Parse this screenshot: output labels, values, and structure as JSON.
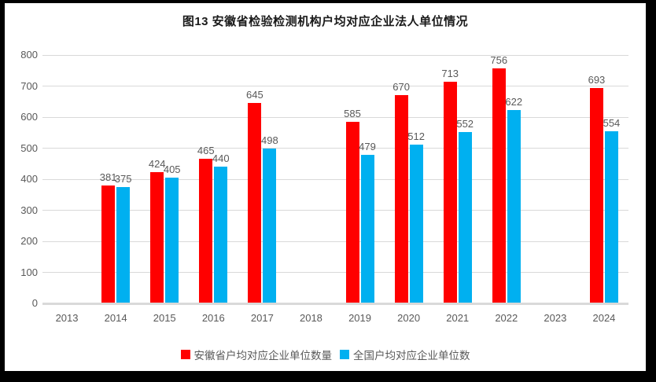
{
  "title": "图13  安徽省检验检测机构户均对应企业法人单位情况",
  "colors": {
    "anhui_series": "#FF0000",
    "national_series": "#00B0F0",
    "gridline": "#D9D9D9",
    "axis_text": "#595959",
    "title_text": "#1A1A1A",
    "frame_border": "#000000",
    "background": "#FFFFFF"
  },
  "chart_data": {
    "type": "bar",
    "title": "图13  安徽省检验检测机构户均对应企业法人单位情况",
    "categories": [
      "2013",
      "2014",
      "2015",
      "2016",
      "2017",
      "2018",
      "2019",
      "2020",
      "2021",
      "2022",
      "2023",
      "2024"
    ],
    "series": [
      {
        "name": "安徽省户均对应企业单位数量",
        "color": "#FF0000",
        "values": [
          null,
          381,
          424,
          465,
          645,
          null,
          585,
          670,
          713,
          756,
          null,
          693
        ]
      },
      {
        "name": "全国户均对应企业单位数",
        "color": "#00B0F0",
        "values": [
          null,
          375,
          405,
          440,
          498,
          null,
          479,
          512,
          552,
          622,
          null,
          554
        ]
      }
    ],
    "xlabel": "",
    "ylabel": "",
    "ylim": [
      0,
      800
    ],
    "ytick_step": 100,
    "yticks": [
      0,
      100,
      200,
      300,
      400,
      500,
      600,
      700,
      800
    ],
    "grid": true,
    "data_labels": true,
    "legend_position": "bottom"
  }
}
